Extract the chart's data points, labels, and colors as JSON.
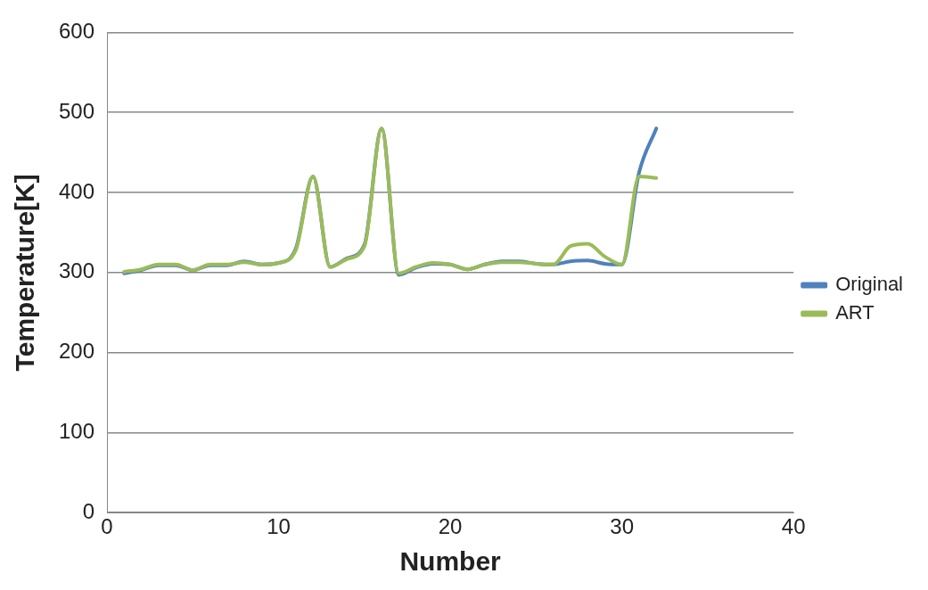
{
  "chart_data": {
    "type": "line",
    "xlabel": "Number",
    "ylabel": "Temperature[K]",
    "x": [
      1,
      2,
      3,
      4,
      5,
      6,
      7,
      8,
      9,
      10,
      11,
      12,
      13,
      14,
      15,
      16,
      17,
      18,
      19,
      20,
      21,
      22,
      23,
      24,
      25,
      26,
      27,
      28,
      29,
      30,
      31,
      32
    ],
    "series": [
      {
        "name": "Original",
        "color": "#4f81bd",
        "values": [
          299,
          303,
          309,
          309,
          303,
          309,
          309,
          314,
          310,
          312,
          330,
          420,
          307,
          318,
          335,
          480,
          297,
          306,
          311,
          310,
          304,
          310,
          314,
          314,
          311,
          310,
          314,
          315,
          311,
          310,
          425,
          480
        ]
      },
      {
        "name": "ART",
        "color": "#9bbb59",
        "values": [
          301,
          304,
          310,
          310,
          303,
          310,
          310,
          313,
          310,
          312,
          328,
          420,
          307,
          317,
          333,
          480,
          299,
          307,
          312,
          310,
          304,
          310,
          313,
          313,
          311,
          310,
          333,
          336,
          320,
          310,
          420,
          418
        ]
      }
    ],
    "xlim": [
      0,
      40
    ],
    "xticks": [
      0,
      10,
      20,
      30,
      40
    ],
    "ylim": [
      0,
      600
    ],
    "yticks": [
      0,
      100,
      200,
      300,
      400,
      500,
      600
    ],
    "grid": "y",
    "legend": "right",
    "marker": "none",
    "line_style": "solid"
  }
}
